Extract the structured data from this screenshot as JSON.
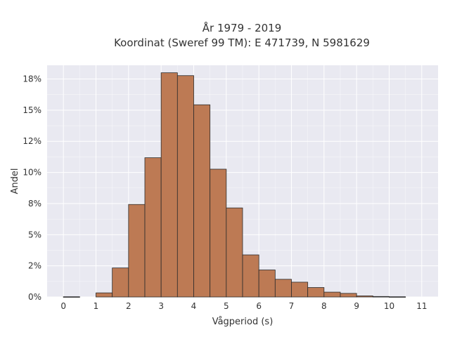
{
  "chart_data": {
    "type": "bar",
    "title_line1": "År 1979 - 2019",
    "title_line2": "Koordinat (Sweref 99 TM): E 471739, N 5981629",
    "xlabel": "Vågperiod (s)",
    "ylabel": "Andel",
    "x_ticks": [
      "0",
      "1",
      "2",
      "3",
      "4",
      "5",
      "6",
      "7",
      "8",
      "9",
      "10",
      "11"
    ],
    "y_ticks": [
      "0%",
      "2%",
      "5%",
      "8%",
      "10%",
      "12%",
      "15%",
      "18%"
    ],
    "xlim": [
      -0.5,
      11.5
    ],
    "ylim": [
      0,
      0.186
    ],
    "bin_width": 0.5,
    "bins_start": [
      0,
      1,
      1.5,
      2,
      2.5,
      3,
      3.5,
      4,
      4.5,
      5,
      5.5,
      6,
      6.5,
      7,
      7.5,
      8,
      8.5,
      9,
      9.5,
      10
    ],
    "values": [
      0.0002,
      0.0033,
      0.0233,
      0.0743,
      0.1118,
      0.18,
      0.1777,
      0.1543,
      0.1026,
      0.0715,
      0.0338,
      0.0217,
      0.0142,
      0.0119,
      0.0076,
      0.0039,
      0.0029,
      0.0009,
      0.0004,
      0.0002
    ],
    "grid": true,
    "colors": {
      "bar_fill": "#bd7a54",
      "bar_edge": "#2b2b2b",
      "plot_bg": "#e9e9f1",
      "grid": "#ffffff"
    }
  }
}
